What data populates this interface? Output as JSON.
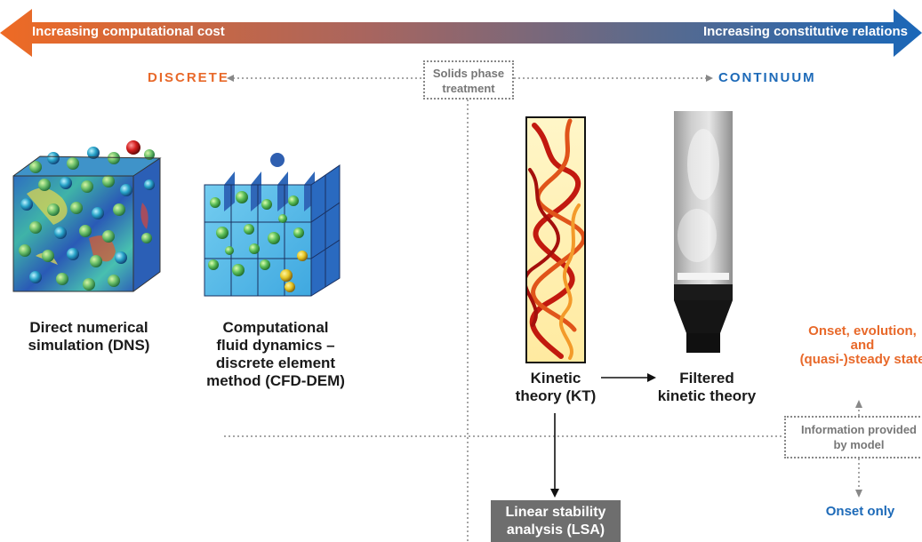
{
  "top_arrow": {
    "left_text": "Increasing computational cost",
    "right_text": "Increasing constitutive relations",
    "colors": {
      "left": "#e8692a",
      "right": "#1d6ab8"
    }
  },
  "axis": {
    "discrete": "DISCRETE",
    "continuum": "CONTINUUM",
    "center_box": [
      "Solids phase",
      "treatment"
    ],
    "discrete_color": "#e8692a",
    "continuum_color": "#1d6ab8"
  },
  "models": {
    "dns": [
      "Direct numerical",
      "simulation (DNS)"
    ],
    "cfd_dem": [
      "Computational",
      "fluid dynamics –",
      "discrete element",
      "method (CFD-DEM)"
    ],
    "kt": [
      "Kinetic",
      "theory (KT)"
    ],
    "filtered": [
      "Filtered",
      "kinetic theory"
    ],
    "lsa": [
      "Linear stability",
      "analysis (LSA)"
    ]
  },
  "info": {
    "box": [
      "Information provided",
      "by model"
    ],
    "upper": [
      "Onset, evolution,",
      "and",
      "(quasi-)steady state"
    ],
    "lower": "Onset only",
    "upper_color": "#e8692a",
    "lower_color": "#1d6ab8"
  }
}
